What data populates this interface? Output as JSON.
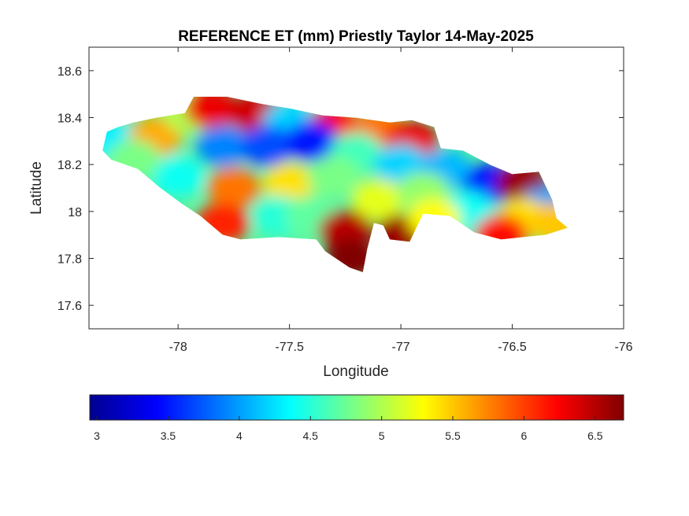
{
  "chart_data": {
    "type": "heatmap",
    "title": "REFERENCE ET (mm) Priestly Taylor 14-May-2025",
    "xlabel": "Longitude",
    "ylabel": "Latitude",
    "xlim": [
      -78.4,
      -76
    ],
    "ylim": [
      17.5,
      18.7
    ],
    "xticks": [
      "-78",
      "-77.5",
      "-77",
      "-76.5",
      "-76"
    ],
    "yticks": [
      "17.6",
      "17.8",
      "18",
      "18.2",
      "18.4",
      "18.6"
    ],
    "grid": false,
    "colormap": "jet",
    "clim": [
      2.95,
      6.7
    ],
    "colorbar": {
      "location": "bottom",
      "ticks": [
        "3",
        "3.5",
        "4",
        "4.5",
        "5",
        "5.5",
        "6",
        "6.5"
      ]
    },
    "regions": [
      {
        "lon": -78.3,
        "lat": 18.3,
        "value": 4.3
      },
      {
        "lon": -78.1,
        "lat": 18.32,
        "value": 5.6
      },
      {
        "lon": -77.95,
        "lat": 18.42,
        "value": 5.0
      },
      {
        "lon": -77.85,
        "lat": 18.44,
        "value": 6.3
      },
      {
        "lon": -77.65,
        "lat": 18.42,
        "value": 6.4
      },
      {
        "lon": -77.5,
        "lat": 18.38,
        "value": 4.2
      },
      {
        "lon": -77.3,
        "lat": 18.36,
        "value": 6.2
      },
      {
        "lon": -77.1,
        "lat": 18.35,
        "value": 5.8
      },
      {
        "lon": -76.95,
        "lat": 18.3,
        "value": 6.3
      },
      {
        "lon": -77.8,
        "lat": 18.28,
        "value": 3.9
      },
      {
        "lon": -77.6,
        "lat": 18.28,
        "value": 3.7
      },
      {
        "lon": -77.4,
        "lat": 18.3,
        "value": 3.5
      },
      {
        "lon": -77.2,
        "lat": 18.25,
        "value": 4.6
      },
      {
        "lon": -77.0,
        "lat": 18.2,
        "value": 4.2
      },
      {
        "lon": -76.8,
        "lat": 18.18,
        "value": 4.1
      },
      {
        "lon": -76.6,
        "lat": 18.12,
        "value": 3.5
      },
      {
        "lon": -76.45,
        "lat": 18.12,
        "value": 6.6
      },
      {
        "lon": -76.35,
        "lat": 18.02,
        "value": 4.0
      },
      {
        "lon": -78.0,
        "lat": 18.15,
        "value": 4.4
      },
      {
        "lon": -77.75,
        "lat": 18.1,
        "value": 5.8
      },
      {
        "lon": -77.5,
        "lat": 18.12,
        "value": 5.4
      },
      {
        "lon": -77.3,
        "lat": 18.15,
        "value": 4.8
      },
      {
        "lon": -77.1,
        "lat": 18.05,
        "value": 5.2
      },
      {
        "lon": -76.9,
        "lat": 18.08,
        "value": 4.9
      },
      {
        "lon": -76.7,
        "lat": 18.0,
        "value": 4.4
      },
      {
        "lon": -76.45,
        "lat": 17.97,
        "value": 5.4
      },
      {
        "lon": -78.2,
        "lat": 18.22,
        "value": 4.8
      },
      {
        "lon": -77.8,
        "lat": 17.95,
        "value": 6.1
      },
      {
        "lon": -77.55,
        "lat": 17.98,
        "value": 4.5
      },
      {
        "lon": -77.4,
        "lat": 17.98,
        "value": 4.7
      },
      {
        "lon": -77.25,
        "lat": 17.92,
        "value": 6.5
      },
      {
        "lon": -77.22,
        "lat": 17.8,
        "value": 6.7
      },
      {
        "lon": -77.0,
        "lat": 17.9,
        "value": 6.6
      },
      {
        "lon": -76.85,
        "lat": 17.97,
        "value": 5.3
      },
      {
        "lon": -76.55,
        "lat": 17.9,
        "value": 6.2
      },
      {
        "lon": -76.3,
        "lat": 17.95,
        "value": 5.5
      }
    ]
  }
}
